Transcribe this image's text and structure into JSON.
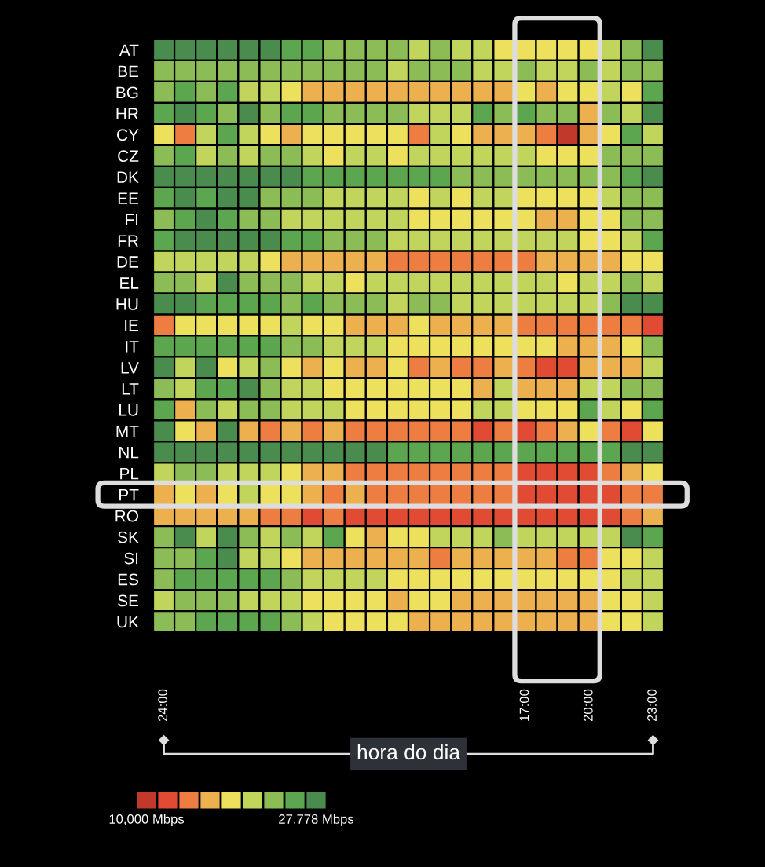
{
  "chart_data": {
    "type": "heatmap",
    "xlabel": "hora do dia",
    "categories": [
      "24:00",
      null,
      null,
      null,
      null,
      null,
      null,
      null,
      null,
      null,
      null,
      null,
      null,
      null,
      null,
      null,
      null,
      "17:00",
      null,
      null,
      "20:00",
      null,
      null,
      "23:00"
    ],
    "y_categories": [
      "AT",
      "BE",
      "BG",
      "HR",
      "CY",
      "CZ",
      "DK",
      "EE",
      "FI",
      "FR",
      "DE",
      "EL",
      "HU",
      "IE",
      "IT",
      "LV",
      "LT",
      "LU",
      "MT",
      "NL",
      "PL",
      "PT",
      "RO",
      "SK",
      "SI",
      "ES",
      "SE",
      "UK"
    ],
    "colors": [
      "#c0392b",
      "#e24b33",
      "#ee7d42",
      "#edb04f",
      "#ece05c",
      "#c1d55c",
      "#8bbc56",
      "#5ba64f",
      "#4a8b4e"
    ],
    "clim": [
      8889,
      28889
    ],
    "cticks": [
      {
        "value": 10000,
        "label": "10,000 Mbps"
      },
      {
        "value": 27778,
        "label": "27,778 Mbps"
      }
    ],
    "cells": [
      [
        27778,
        27778,
        27778,
        27778,
        27778,
        27778,
        25556,
        25556,
        23333,
        23333,
        23333,
        23333,
        21111,
        23333,
        21111,
        21111,
        18889,
        18889,
        18889,
        18889,
        18889,
        21111,
        23333,
        27778
      ],
      [
        23333,
        23333,
        23333,
        23333,
        23333,
        23333,
        23333,
        23333,
        23333,
        23333,
        23333,
        21111,
        23333,
        23333,
        23333,
        21111,
        21111,
        23333,
        21111,
        21111,
        23333,
        21111,
        23333,
        23333
      ],
      [
        23333,
        25556,
        23333,
        25556,
        21111,
        21111,
        18889,
        16667,
        16667,
        16667,
        16667,
        16667,
        16667,
        16667,
        16667,
        16667,
        16667,
        18889,
        16667,
        18889,
        18889,
        21111,
        18889,
        25556
      ],
      [
        25556,
        27778,
        25556,
        23333,
        27778,
        23333,
        25556,
        25556,
        23333,
        23333,
        23333,
        23333,
        21111,
        21111,
        21111,
        25556,
        23333,
        25556,
        23333,
        23333,
        16667,
        23333,
        21111,
        27778
      ],
      [
        18889,
        14444,
        21111,
        25556,
        21111,
        18889,
        16667,
        18889,
        18889,
        18889,
        18889,
        18889,
        14444,
        21111,
        18889,
        16667,
        16667,
        16667,
        14444,
        10000,
        16667,
        18889,
        25556,
        21111
      ],
      [
        23333,
        25556,
        21111,
        23333,
        21111,
        23333,
        23333,
        21111,
        18889,
        21111,
        21111,
        18889,
        21111,
        21111,
        21111,
        21111,
        21111,
        21111,
        18889,
        18889,
        18889,
        23333,
        23333,
        23333
      ],
      [
        27778,
        27778,
        27778,
        27778,
        27778,
        27778,
        27778,
        25556,
        25556,
        25556,
        25556,
        25556,
        25556,
        25556,
        23333,
        23333,
        23333,
        23333,
        23333,
        23333,
        23333,
        23333,
        25556,
        27778
      ],
      [
        25556,
        27778,
        25556,
        27778,
        27778,
        23333,
        23333,
        23333,
        21111,
        21111,
        21111,
        21111,
        18889,
        21111,
        18889,
        21111,
        21111,
        18889,
        18889,
        18889,
        18889,
        21111,
        23333,
        23333
      ],
      [
        23333,
        25556,
        27778,
        25556,
        23333,
        23333,
        21111,
        21111,
        21111,
        21111,
        21111,
        21111,
        18889,
        18889,
        18889,
        18889,
        18889,
        18889,
        16667,
        16667,
        18889,
        18889,
        23333,
        23333
      ],
      [
        25556,
        27778,
        27778,
        27778,
        27778,
        27778,
        25556,
        25556,
        23333,
        23333,
        23333,
        21111,
        21111,
        21111,
        21111,
        21111,
        21111,
        21111,
        21111,
        21111,
        18889,
        18889,
        21111,
        25556
      ],
      [
        21111,
        21111,
        21111,
        21111,
        21111,
        18889,
        16667,
        16667,
        16667,
        16667,
        16667,
        14444,
        14444,
        14444,
        14444,
        14444,
        14444,
        14444,
        16667,
        16667,
        16667,
        16667,
        18889,
        18889
      ],
      [
        23333,
        23333,
        21111,
        27778,
        23333,
        23333,
        23333,
        21111,
        21111,
        18889,
        21111,
        21111,
        21111,
        21111,
        21111,
        21111,
        21111,
        21111,
        21111,
        18889,
        21111,
        21111,
        23333,
        21111
      ],
      [
        27778,
        27778,
        25556,
        25556,
        25556,
        25556,
        23333,
        25556,
        23333,
        23333,
        23333,
        21111,
        23333,
        23333,
        21111,
        21111,
        21111,
        21111,
        21111,
        21111,
        21111,
        23333,
        27778,
        27778
      ],
      [
        14444,
        18889,
        18889,
        18889,
        18889,
        18889,
        21111,
        18889,
        18889,
        16667,
        16667,
        16667,
        18889,
        16667,
        16667,
        16667,
        16667,
        14444,
        14444,
        14444,
        14444,
        14444,
        14444,
        12222
      ],
      [
        25556,
        25556,
        25556,
        25556,
        25556,
        25556,
        23333,
        23333,
        21111,
        21111,
        21111,
        18889,
        18889,
        18889,
        18889,
        18889,
        18889,
        18889,
        18889,
        16667,
        16667,
        16667,
        18889,
        23333
      ],
      [
        27778,
        21111,
        27778,
        18889,
        21111,
        23333,
        18889,
        16667,
        18889,
        16667,
        16667,
        18889,
        14444,
        16667,
        14444,
        14444,
        16667,
        14444,
        12222,
        12222,
        16667,
        16667,
        16667,
        21111
      ],
      [
        23333,
        21111,
        25556,
        25556,
        27778,
        23333,
        21111,
        21111,
        18889,
        18889,
        18889,
        18889,
        18889,
        18889,
        18889,
        16667,
        21111,
        16667,
        16667,
        16667,
        21111,
        21111,
        23333,
        23333
      ],
      [
        25556,
        16667,
        23333,
        21111,
        23333,
        23333,
        21111,
        21111,
        21111,
        18889,
        18889,
        18889,
        18889,
        18889,
        18889,
        21111,
        21111,
        18889,
        18889,
        18889,
        25556,
        21111,
        18889,
        25556
      ],
      [
        27778,
        18889,
        16667,
        27778,
        16667,
        14444,
        16667,
        14444,
        16667,
        14444,
        14444,
        14444,
        14444,
        14444,
        14444,
        12222,
        14444,
        12222,
        14444,
        16667,
        18889,
        14444,
        12222,
        18889
      ],
      [
        27778,
        27778,
        27778,
        27778,
        27778,
        27778,
        27778,
        27778,
        27778,
        27778,
        27778,
        25556,
        25556,
        25556,
        25556,
        25556,
        25556,
        25556,
        25556,
        25556,
        25556,
        25556,
        27778,
        27778
      ],
      [
        21111,
        23333,
        23333,
        21111,
        21111,
        21111,
        18889,
        16667,
        16667,
        14444,
        14444,
        14444,
        14444,
        14444,
        14444,
        14444,
        14444,
        12222,
        12222,
        12222,
        12222,
        14444,
        16667,
        18889
      ],
      [
        16667,
        18889,
        16667,
        18889,
        21111,
        18889,
        18889,
        16667,
        14444,
        16667,
        14444,
        14444,
        14444,
        14444,
        14444,
        14444,
        14444,
        12222,
        12222,
        12222,
        12222,
        12222,
        14444,
        14444
      ],
      [
        16667,
        16667,
        16667,
        16667,
        16667,
        14444,
        14444,
        12222,
        14444,
        12222,
        12222,
        12222,
        12222,
        12222,
        12222,
        12222,
        12222,
        12222,
        12222,
        12222,
        12222,
        12222,
        14444,
        16667
      ],
      [
        23333,
        27778,
        21111,
        27778,
        23333,
        21111,
        23333,
        21111,
        25556,
        18889,
        16667,
        18889,
        18889,
        21111,
        21111,
        21111,
        23333,
        21111,
        21111,
        21111,
        21111,
        21111,
        27778,
        25556
      ],
      [
        23333,
        23333,
        25556,
        27778,
        21111,
        21111,
        18889,
        16667,
        16667,
        16667,
        16667,
        16667,
        16667,
        14444,
        16667,
        16667,
        16667,
        16667,
        16667,
        14444,
        14444,
        18889,
        18889,
        21111
      ],
      [
        23333,
        25556,
        25556,
        25556,
        25556,
        25556,
        23333,
        21111,
        21111,
        21111,
        21111,
        18889,
        18889,
        18889,
        18889,
        18889,
        18889,
        18889,
        18889,
        18889,
        18889,
        18889,
        21111,
        21111
      ],
      [
        21111,
        23333,
        23333,
        23333,
        21111,
        21111,
        21111,
        18889,
        18889,
        18889,
        18889,
        16667,
        18889,
        18889,
        16667,
        16667,
        16667,
        16667,
        16667,
        16667,
        16667,
        18889,
        18889,
        21111
      ],
      [
        23333,
        23333,
        25556,
        25556,
        25556,
        25556,
        23333,
        21111,
        18889,
        18889,
        18889,
        18889,
        16667,
        16667,
        16667,
        16667,
        16667,
        16667,
        16667,
        16667,
        16667,
        18889,
        18889,
        21111
      ]
    ]
  }
}
